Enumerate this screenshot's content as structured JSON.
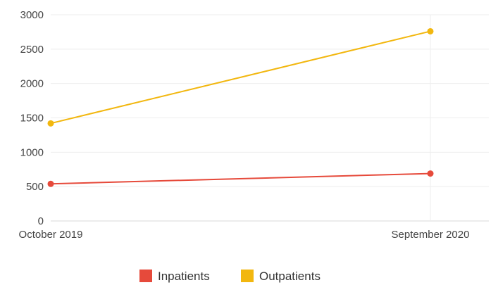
{
  "chart_data": {
    "type": "line",
    "categories": [
      "October 2019",
      "September 2020"
    ],
    "series": [
      {
        "name": "Inpatients",
        "values": [
          540,
          690
        ],
        "color": "#e64a3b"
      },
      {
        "name": "Outpatients",
        "values": [
          1420,
          2760
        ],
        "color": "#f2b70f"
      }
    ],
    "ylim": [
      0,
      3000
    ],
    "yticks": [
      "0",
      "500",
      "1000",
      "1500",
      "2000",
      "2500",
      "3000"
    ],
    "grid": true,
    "legend": "bottom-center"
  }
}
